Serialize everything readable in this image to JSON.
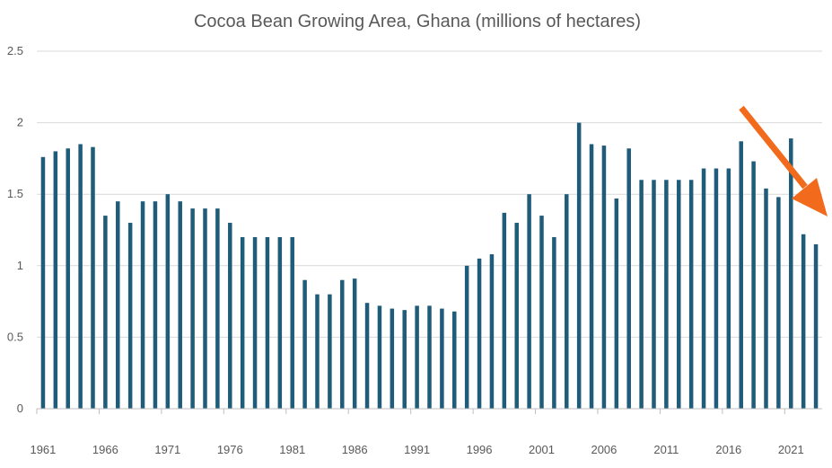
{
  "chart_data": {
    "type": "bar",
    "title": "Cocoa Bean Growing Area, Ghana (millions of hectares)",
    "xlabel": "",
    "ylabel": "",
    "ylim": [
      0,
      2.5
    ],
    "yticks": [
      "0",
      "0.5",
      "1",
      "1.5",
      "2",
      "2.5"
    ],
    "grid": true,
    "x_tick_labels": [
      "1961",
      "1966",
      "1971",
      "1976",
      "1981",
      "1986",
      "1991",
      "1996",
      "2001",
      "2006",
      "2011",
      "2016",
      "2021"
    ],
    "categories": [
      "1961",
      "1962",
      "1963",
      "1964",
      "1965",
      "1966",
      "1967",
      "1968",
      "1969",
      "1970",
      "1971",
      "1972",
      "1973",
      "1974",
      "1975",
      "1976",
      "1977",
      "1978",
      "1979",
      "1980",
      "1981",
      "1982",
      "1983",
      "1984",
      "1985",
      "1986",
      "1987",
      "1988",
      "1989",
      "1990",
      "1991",
      "1992",
      "1993",
      "1994",
      "1995",
      "1996",
      "1997",
      "1998",
      "1999",
      "2000",
      "2001",
      "2002",
      "2003",
      "2004",
      "2005",
      "2006",
      "2007",
      "2008",
      "2009",
      "2010",
      "2011",
      "2012",
      "2013",
      "2014",
      "2015",
      "2016",
      "2017",
      "2018",
      "2019",
      "2020",
      "2021",
      "2022",
      "2023"
    ],
    "values": [
      1.76,
      1.8,
      1.82,
      1.85,
      1.83,
      1.35,
      1.45,
      1.3,
      1.45,
      1.45,
      1.5,
      1.45,
      1.4,
      1.4,
      1.4,
      1.3,
      1.2,
      1.2,
      1.2,
      1.2,
      1.2,
      0.9,
      0.8,
      0.8,
      0.9,
      0.91,
      0.74,
      0.72,
      0.7,
      0.69,
      0.72,
      0.72,
      0.7,
      0.68,
      1.0,
      1.05,
      1.08,
      1.37,
      1.3,
      1.5,
      1.35,
      1.2,
      1.5,
      2.0,
      1.85,
      1.84,
      1.47,
      1.82,
      1.6,
      1.6,
      1.6,
      1.6,
      1.6,
      1.68,
      1.68,
      1.68,
      1.87,
      1.73,
      1.54,
      1.48,
      1.89,
      1.22,
      1.15
    ],
    "colors": {
      "bar": "#1f5c7a",
      "arrow": "#f26b1d",
      "grid": "#d9d9d9",
      "axis": "#bfbfbf",
      "text": "#595959"
    },
    "annotation": {
      "type": "arrow",
      "direction": "down-right",
      "color": "#f26b1d"
    }
  }
}
